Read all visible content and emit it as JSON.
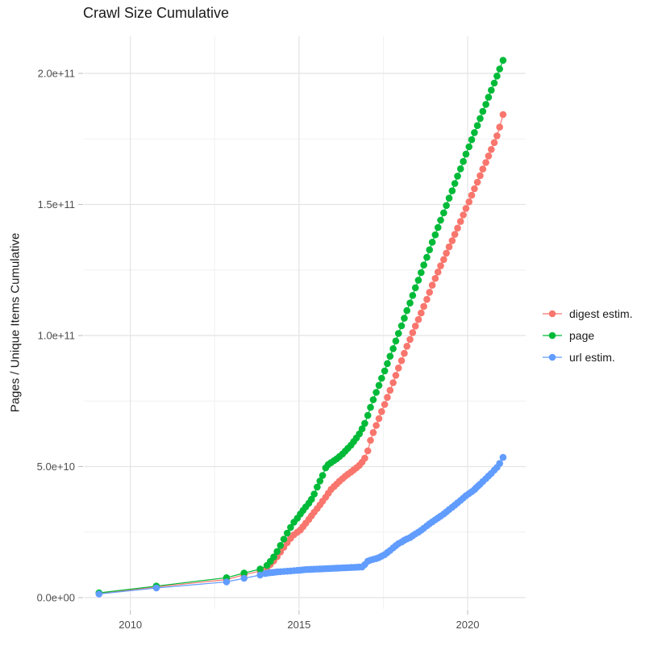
{
  "chart_data": {
    "type": "scatter",
    "title": "Crawl Size Cumulative",
    "xlabel": "",
    "ylabel": "Pages / Unique Items Cumulative",
    "x_tick_labels": [
      "2010",
      "2015",
      "2020"
    ],
    "x_tick_values": [
      2010,
      2015,
      2020
    ],
    "x_minor_values": [
      2012.5,
      2017.5
    ],
    "y_tick_labels": [
      "0.0e+00",
      "5.0e+10",
      "1.0e+11",
      "1.5e+11",
      "2.0e+11"
    ],
    "y_tick_values": [
      0,
      50,
      100,
      150,
      200
    ],
    "y_minor_values": [
      25,
      75,
      125,
      175
    ],
    "value_scale": 1000000000.0,
    "xlim": [
      2008.6,
      2021.7
    ],
    "ylim": [
      0,
      214000000000.0
    ],
    "grid": true,
    "legend_position": "right",
    "series": [
      {
        "name": "digest estim.",
        "color": "#F8766D",
        "points": [
          [
            2009.07,
            1.6
          ],
          [
            2010.77,
            4.1
          ],
          [
            2012.85,
            6.9
          ],
          [
            2013.37,
            8.7
          ],
          [
            2013.85,
            10.2
          ],
          [
            2014.05,
            11.4
          ],
          [
            2014.15,
            12.6
          ],
          [
            2014.25,
            14.0
          ],
          [
            2014.35,
            15.6
          ],
          [
            2014.45,
            17.4
          ],
          [
            2014.55,
            19.2
          ],
          [
            2014.65,
            21.0
          ],
          [
            2014.75,
            22.6
          ],
          [
            2014.85,
            24.0
          ],
          [
            2014.95,
            25.0
          ],
          [
            2015.04,
            25.8
          ],
          [
            2015.12,
            27.1
          ],
          [
            2015.2,
            28.4
          ],
          [
            2015.29,
            29.8
          ],
          [
            2015.37,
            31.2
          ],
          [
            2015.45,
            32.6
          ],
          [
            2015.54,
            34.0
          ],
          [
            2015.62,
            35.4
          ],
          [
            2015.7,
            36.8
          ],
          [
            2015.79,
            38.3
          ],
          [
            2015.87,
            39.8
          ],
          [
            2015.95,
            41.3
          ],
          [
            2016.04,
            42.4
          ],
          [
            2016.12,
            43.4
          ],
          [
            2016.2,
            44.4
          ],
          [
            2016.29,
            45.4
          ],
          [
            2016.37,
            46.3
          ],
          [
            2016.45,
            47.1
          ],
          [
            2016.54,
            47.9
          ],
          [
            2016.62,
            48.7
          ],
          [
            2016.7,
            49.5
          ],
          [
            2016.79,
            50.5
          ],
          [
            2016.87,
            51.7
          ],
          [
            2016.95,
            53.2
          ],
          [
            2017.04,
            56.0
          ],
          [
            2017.12,
            60.0
          ],
          [
            2017.2,
            63.0
          ],
          [
            2017.29,
            65.7
          ],
          [
            2017.37,
            68.3
          ],
          [
            2017.45,
            71.0
          ],
          [
            2017.54,
            73.7
          ],
          [
            2017.62,
            76.4
          ],
          [
            2017.7,
            79.1
          ],
          [
            2017.79,
            82.0
          ],
          [
            2017.87,
            84.8
          ],
          [
            2017.95,
            87.6
          ],
          [
            2018.04,
            90.4
          ],
          [
            2018.12,
            93.2
          ],
          [
            2018.2,
            95.9
          ],
          [
            2018.29,
            98.5
          ],
          [
            2018.37,
            101.1
          ],
          [
            2018.45,
            103.6
          ],
          [
            2018.54,
            106.1
          ],
          [
            2018.62,
            108.6
          ],
          [
            2018.7,
            111.1
          ],
          [
            2018.79,
            113.8
          ],
          [
            2018.87,
            116.5
          ],
          [
            2018.95,
            119.2
          ],
          [
            2019.04,
            121.8
          ],
          [
            2019.12,
            124.2
          ],
          [
            2019.2,
            126.6
          ],
          [
            2019.29,
            129.0
          ],
          [
            2019.37,
            131.4
          ],
          [
            2019.45,
            133.8
          ],
          [
            2019.54,
            136.2
          ],
          [
            2019.62,
            138.6
          ],
          [
            2019.7,
            141.0
          ],
          [
            2019.79,
            143.5
          ],
          [
            2019.87,
            146.0
          ],
          [
            2019.95,
            148.5
          ],
          [
            2020.04,
            151.0
          ],
          [
            2020.12,
            153.5
          ],
          [
            2020.2,
            156.0
          ],
          [
            2020.29,
            158.5
          ],
          [
            2020.37,
            161.0
          ],
          [
            2020.45,
            163.5
          ],
          [
            2020.54,
            166.0
          ],
          [
            2020.62,
            168.5
          ],
          [
            2020.7,
            171.0
          ],
          [
            2020.79,
            173.6
          ],
          [
            2020.87,
            176.2
          ],
          [
            2020.95,
            179.5
          ],
          [
            2021.05,
            184.3
          ]
        ]
      },
      {
        "name": "page",
        "color": "#00BA38",
        "points": [
          [
            2009.07,
            1.8
          ],
          [
            2010.77,
            4.4
          ],
          [
            2012.85,
            7.6
          ],
          [
            2013.37,
            9.4
          ],
          [
            2013.85,
            10.9
          ],
          [
            2014.05,
            12.3
          ],
          [
            2014.15,
            13.8
          ],
          [
            2014.25,
            15.5
          ],
          [
            2014.35,
            17.6
          ],
          [
            2014.45,
            19.9
          ],
          [
            2014.55,
            22.3
          ],
          [
            2014.65,
            24.6
          ],
          [
            2014.75,
            26.8
          ],
          [
            2014.85,
            28.8
          ],
          [
            2014.95,
            30.3
          ],
          [
            2015.04,
            31.9
          ],
          [
            2015.12,
            33.3
          ],
          [
            2015.2,
            34.6
          ],
          [
            2015.29,
            36.0
          ],
          [
            2015.37,
            37.5
          ],
          [
            2015.45,
            39.5
          ],
          [
            2015.54,
            42.2
          ],
          [
            2015.62,
            44.5
          ],
          [
            2015.7,
            46.6
          ],
          [
            2015.79,
            49.5
          ],
          [
            2015.87,
            50.8
          ],
          [
            2015.95,
            51.5
          ],
          [
            2016.04,
            52.3
          ],
          [
            2016.12,
            53.0
          ],
          [
            2016.2,
            53.8
          ],
          [
            2016.29,
            54.8
          ],
          [
            2016.37,
            55.9
          ],
          [
            2016.45,
            57.0
          ],
          [
            2016.54,
            58.2
          ],
          [
            2016.62,
            59.5
          ],
          [
            2016.7,
            60.9
          ],
          [
            2016.79,
            62.5
          ],
          [
            2016.87,
            64.4
          ],
          [
            2016.95,
            66.5
          ],
          [
            2017.04,
            69.5
          ],
          [
            2017.12,
            72.6
          ],
          [
            2017.2,
            75.5
          ],
          [
            2017.29,
            78.3
          ],
          [
            2017.37,
            81.0
          ],
          [
            2017.45,
            83.7
          ],
          [
            2017.54,
            86.5
          ],
          [
            2017.62,
            89.3
          ],
          [
            2017.7,
            92.1
          ],
          [
            2017.79,
            95.0
          ],
          [
            2017.87,
            97.9
          ],
          [
            2017.95,
            100.8
          ],
          [
            2018.04,
            103.7
          ],
          [
            2018.12,
            106.6
          ],
          [
            2018.2,
            109.5
          ],
          [
            2018.29,
            112.4
          ],
          [
            2018.37,
            115.3
          ],
          [
            2018.45,
            118.2
          ],
          [
            2018.54,
            121.1
          ],
          [
            2018.62,
            124.0
          ],
          [
            2018.7,
            126.9
          ],
          [
            2018.79,
            129.8
          ],
          [
            2018.87,
            132.7
          ],
          [
            2018.95,
            135.6
          ],
          [
            2019.04,
            138.4
          ],
          [
            2019.12,
            141.2
          ],
          [
            2019.2,
            144.0
          ],
          [
            2019.29,
            146.8
          ],
          [
            2019.37,
            149.6
          ],
          [
            2019.45,
            152.4
          ],
          [
            2019.54,
            155.2
          ],
          [
            2019.62,
            158.0
          ],
          [
            2019.7,
            160.8
          ],
          [
            2019.79,
            163.6
          ],
          [
            2019.87,
            166.4
          ],
          [
            2019.95,
            169.2
          ],
          [
            2020.04,
            172.0
          ],
          [
            2020.12,
            174.7
          ],
          [
            2020.2,
            177.4
          ],
          [
            2020.29,
            180.1
          ],
          [
            2020.37,
            182.8
          ],
          [
            2020.45,
            185.5
          ],
          [
            2020.54,
            188.2
          ],
          [
            2020.62,
            190.9
          ],
          [
            2020.7,
            193.6
          ],
          [
            2020.79,
            196.3
          ],
          [
            2020.87,
            199.0
          ],
          [
            2020.95,
            201.7
          ],
          [
            2021.05,
            205.0
          ]
        ]
      },
      {
        "name": "url estim.",
        "color": "#619CFF",
        "points": [
          [
            2009.07,
            1.4
          ],
          [
            2010.77,
            3.7
          ],
          [
            2012.85,
            6.0
          ],
          [
            2013.37,
            7.4
          ],
          [
            2013.85,
            8.6
          ],
          [
            2014.0,
            9.2
          ],
          [
            2014.07,
            9.4
          ],
          [
            2014.14,
            9.5
          ],
          [
            2014.21,
            9.6
          ],
          [
            2014.28,
            9.7
          ],
          [
            2014.35,
            9.8
          ],
          [
            2014.45,
            9.9
          ],
          [
            2014.55,
            10.0
          ],
          [
            2014.65,
            10.1
          ],
          [
            2014.75,
            10.2
          ],
          [
            2014.85,
            10.3
          ],
          [
            2014.95,
            10.4
          ],
          [
            2015.04,
            10.5
          ],
          [
            2015.12,
            10.6
          ],
          [
            2015.2,
            10.7
          ],
          [
            2015.29,
            10.75
          ],
          [
            2015.37,
            10.8
          ],
          [
            2015.45,
            10.85
          ],
          [
            2015.54,
            10.9
          ],
          [
            2015.62,
            10.95
          ],
          [
            2015.7,
            11.0
          ],
          [
            2015.79,
            11.05
          ],
          [
            2015.87,
            11.1
          ],
          [
            2015.95,
            11.15
          ],
          [
            2016.04,
            11.2
          ],
          [
            2016.12,
            11.25
          ],
          [
            2016.2,
            11.3
          ],
          [
            2016.29,
            11.35
          ],
          [
            2016.37,
            11.4
          ],
          [
            2016.45,
            11.45
          ],
          [
            2016.54,
            11.5
          ],
          [
            2016.62,
            11.55
          ],
          [
            2016.7,
            11.6
          ],
          [
            2016.79,
            11.65
          ],
          [
            2016.87,
            11.7
          ],
          [
            2016.95,
            12.6
          ],
          [
            2017.04,
            13.9
          ],
          [
            2017.12,
            14.3
          ],
          [
            2017.2,
            14.6
          ],
          [
            2017.29,
            14.9
          ],
          [
            2017.37,
            15.3
          ],
          [
            2017.45,
            15.8
          ],
          [
            2017.54,
            16.4
          ],
          [
            2017.62,
            17.2
          ],
          [
            2017.7,
            18.0
          ],
          [
            2017.79,
            19.0
          ],
          [
            2017.87,
            19.8
          ],
          [
            2017.95,
            20.6
          ],
          [
            2018.04,
            21.2
          ],
          [
            2018.12,
            21.9
          ],
          [
            2018.2,
            22.4
          ],
          [
            2018.29,
            22.9
          ],
          [
            2018.37,
            23.6
          ],
          [
            2018.45,
            24.3
          ],
          [
            2018.54,
            25.0
          ],
          [
            2018.62,
            25.7
          ],
          [
            2018.7,
            26.5
          ],
          [
            2018.79,
            27.4
          ],
          [
            2018.87,
            28.2
          ],
          [
            2018.95,
            28.9
          ],
          [
            2019.04,
            29.7
          ],
          [
            2019.12,
            30.4
          ],
          [
            2019.2,
            31.1
          ],
          [
            2019.29,
            31.9
          ],
          [
            2019.37,
            32.7
          ],
          [
            2019.45,
            33.6
          ],
          [
            2019.54,
            34.5
          ],
          [
            2019.62,
            35.3
          ],
          [
            2019.7,
            36.2
          ],
          [
            2019.79,
            37.1
          ],
          [
            2019.87,
            38.0
          ],
          [
            2019.95,
            38.9
          ],
          [
            2020.04,
            39.7
          ],
          [
            2020.12,
            40.4
          ],
          [
            2020.2,
            41.2
          ],
          [
            2020.25,
            41.9
          ],
          [
            2020.31,
            42.6
          ],
          [
            2020.37,
            43.3
          ],
          [
            2020.45,
            44.3
          ],
          [
            2020.54,
            45.4
          ],
          [
            2020.62,
            46.4
          ],
          [
            2020.7,
            47.4
          ],
          [
            2020.79,
            48.6
          ],
          [
            2020.87,
            49.7
          ],
          [
            2020.95,
            51.2
          ],
          [
            2021.05,
            53.5
          ]
        ]
      }
    ]
  },
  "legend": {
    "items": [
      "digest estim.",
      "page",
      "url estim."
    ]
  },
  "colors": {
    "grid_major": "#e4e4e4",
    "grid_minor": "#f0f0f0",
    "axis_text": "#4d4d4d",
    "tick_mark": "#bdbdbd",
    "title_text": "#1a1a1a"
  }
}
